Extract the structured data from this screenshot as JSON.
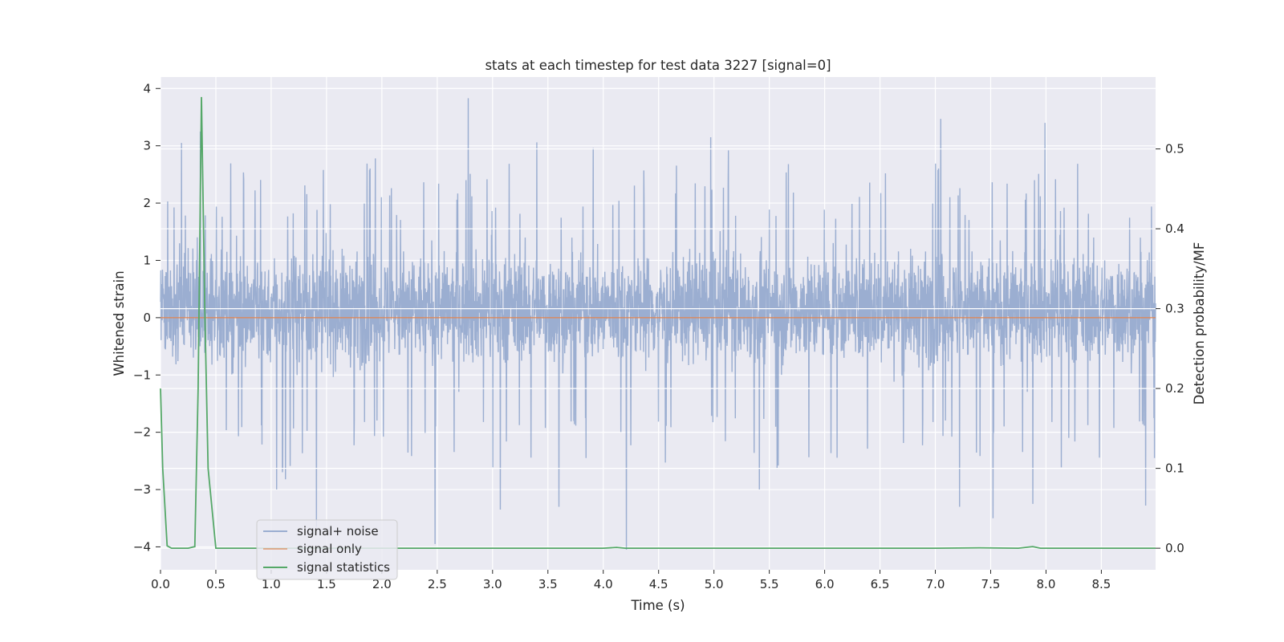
{
  "chart_data": {
    "type": "line",
    "title": "stats at each timestep for test data 3227 [signal=0]",
    "xlabel": "Time (s)",
    "ylabel": "Whitened strain",
    "y2label": "Detection probability/MF",
    "xlim": [
      0,
      8.99
    ],
    "ylim": [
      -4.4,
      4.2
    ],
    "y2lim": [
      -0.027,
      0.59
    ],
    "xticks": [
      0.0,
      0.5,
      1.0,
      1.5,
      2.0,
      2.5,
      3.0,
      3.5,
      4.0,
      4.5,
      5.0,
      5.5,
      6.0,
      6.5,
      7.0,
      7.5,
      8.0,
      8.5
    ],
    "xtick_labels": [
      "0.0",
      "0.5",
      "1.0",
      "1.5",
      "2.0",
      "2.5",
      "3.0",
      "3.5",
      "4.0",
      "4.5",
      "5.0",
      "5.5",
      "6.0",
      "6.5",
      "7.0",
      "7.5",
      "8.0",
      "8.5"
    ],
    "yticks": [
      4,
      3,
      2,
      1,
      0,
      -1,
      -2,
      -3,
      -4
    ],
    "ytick_labels": [
      "4",
      "3",
      "2",
      "1",
      "0",
      "−1",
      "−2",
      "−3",
      "−4"
    ],
    "y2ticks": [
      0.5,
      0.4,
      0.3,
      0.2,
      0.1,
      0.0
    ],
    "y2tick_labels": [
      "0.5",
      "0.4",
      "0.3",
      "0.2",
      "0.1",
      "0.0"
    ],
    "grid": true,
    "legend_position": "lower-left",
    "series": [
      {
        "name": "signal+ noise",
        "axis": "left",
        "color": "#4c72b0",
        "kind": "dense-noise",
        "typical_range": [
          -1.25,
          1.55
        ],
        "peaks": [
          {
            "x": 0.19,
            "y": 3.05
          },
          {
            "x": 0.36,
            "y": 3.25
          },
          {
            "x": 1.05,
            "y": 3.03
          },
          {
            "x": 1.94,
            "y": 2.78
          },
          {
            "x": 2.78,
            "y": 3.83
          },
          {
            "x": 3.07,
            "y": 3.37
          },
          {
            "x": 3.4,
            "y": 3.06
          },
          {
            "x": 3.91,
            "y": 2.96
          },
          {
            "x": 4.97,
            "y": 3.15
          },
          {
            "x": 7.05,
            "y": 3.47
          },
          {
            "x": 7.99,
            "y": 3.4
          },
          {
            "x": 5.13,
            "y": 2.92
          }
        ],
        "troughs": [
          {
            "x": 1.05,
            "y": -3.0
          },
          {
            "x": 1.41,
            "y": -3.65
          },
          {
            "x": 2.48,
            "y": -3.95
          },
          {
            "x": 3.07,
            "y": -3.35
          },
          {
            "x": 3.6,
            "y": -3.3
          },
          {
            "x": 4.21,
            "y": -4.05
          },
          {
            "x": 5.41,
            "y": -3.0
          },
          {
            "x": 7.22,
            "y": -3.3
          },
          {
            "x": 7.52,
            "y": -3.5
          },
          {
            "x": 7.88,
            "y": -3.25
          },
          {
            "x": 8.9,
            "y": -3.28
          },
          {
            "x": 1.13,
            "y": -2.82
          }
        ]
      },
      {
        "name": "signal only",
        "axis": "left",
        "color": "#dd8452",
        "x": [
          0.0,
          8.99
        ],
        "y": [
          0.0,
          0.0
        ]
      },
      {
        "name": "signal statistics",
        "axis": "right",
        "color": "#55a868",
        "x": [
          0.0,
          0.02,
          0.06,
          0.1,
          0.15,
          0.2,
          0.25,
          0.31,
          0.34,
          0.37,
          0.4,
          0.43,
          0.5,
          0.6,
          1.0,
          2.0,
          3.0,
          4.0,
          4.12,
          4.2,
          4.5,
          5.0,
          6.0,
          7.0,
          7.4,
          7.75,
          7.88,
          7.95,
          8.2,
          8.99
        ],
        "y": [
          0.2,
          0.1,
          0.003,
          0.0,
          0.0,
          0.0,
          0.0,
          0.002,
          0.2,
          0.565,
          0.3,
          0.1,
          0.0,
          0.0,
          0.0,
          0.0,
          0.0,
          0.0,
          0.001,
          0.0,
          0.0,
          0.0,
          0.0,
          0.0,
          0.0005,
          0.0,
          0.002,
          0.0,
          0.0,
          0.0
        ]
      }
    ]
  }
}
